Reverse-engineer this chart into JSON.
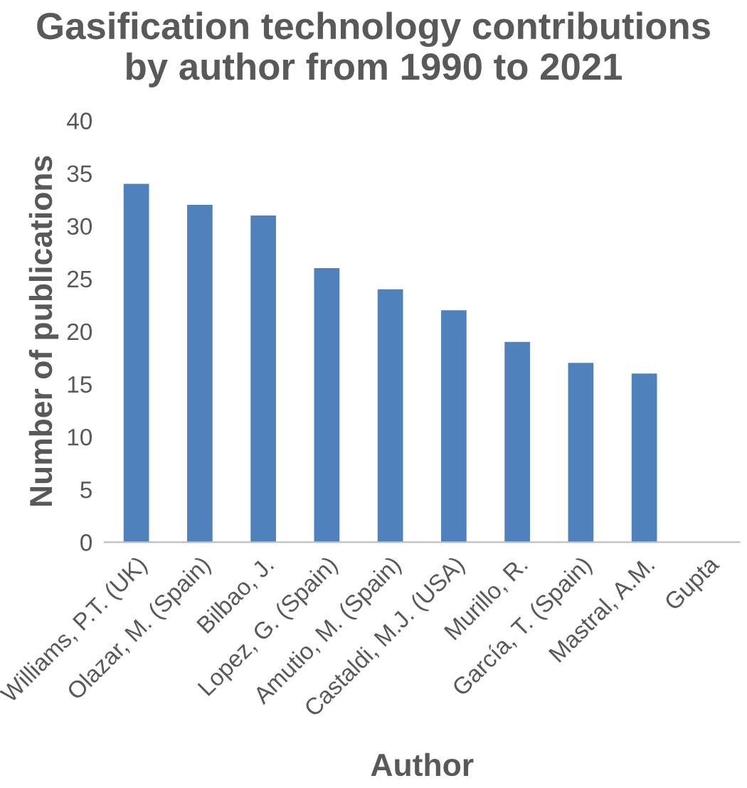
{
  "chart_data": {
    "type": "bar",
    "title": "Gasification technology contributions\nby author from 1990 to 2021",
    "xlabel": "Author",
    "ylabel": "Number of publications",
    "categories": [
      "Williams, P.T. (UK)",
      "Olazar, M. (Spain)",
      "Bilbao, J.",
      "Lopez, G. (Spain)",
      "Amutio, M. (Spain)",
      "Castaldi, M.J. (USA)",
      "Murillo, R.",
      "García, T. (Spain)",
      "Mastral, A.M.",
      "Gupta"
    ],
    "values": [
      34,
      32,
      31,
      26,
      24,
      22,
      19,
      17,
      16,
      null
    ],
    "color": "#4f81bd",
    "ylim": [
      0,
      40
    ],
    "yticks": [
      0,
      5,
      10,
      15,
      20,
      25,
      30,
      35,
      40
    ],
    "grid": false,
    "legend": false
  }
}
